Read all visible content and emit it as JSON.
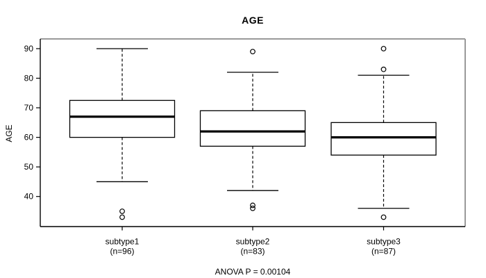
{
  "colors": {
    "background": "#ffffff",
    "frame_gray": "#999999",
    "axis_black": "#000000",
    "box_fill": "#ffffff",
    "box_stroke": "#000000"
  },
  "chart_data": {
    "type": "boxplot",
    "title": "AGE",
    "ylabel": "AGE",
    "xlabel": "",
    "annotation": "ANOVA P = 0.00104",
    "y_ticks": [
      40,
      50,
      60,
      70,
      80,
      90
    ],
    "ylim": [
      30,
      93
    ],
    "grid": false,
    "categories": [
      "subtype1 (n=96)",
      "subtype2 (n=83)",
      "subtype3 (n=87)"
    ],
    "series": [
      {
        "label": "subtype1",
        "n_label": "(n=96)",
        "n": 96,
        "whisker_low": 45,
        "q1": 60,
        "median": 67,
        "q3": 72.5,
        "whisker_high": 90,
        "outliers": [
          35,
          33
        ]
      },
      {
        "label": "subtype2",
        "n_label": "(n=83)",
        "n": 83,
        "whisker_low": 42,
        "q1": 57,
        "median": 62,
        "q3": 69,
        "whisker_high": 82,
        "outliers": [
          89,
          37,
          36
        ]
      },
      {
        "label": "subtype3",
        "n_label": "(n=87)",
        "n": 87,
        "whisker_low": 36,
        "q1": 54,
        "median": 60,
        "q3": 65,
        "whisker_high": 81,
        "outliers": [
          90,
          83,
          33
        ]
      }
    ]
  }
}
